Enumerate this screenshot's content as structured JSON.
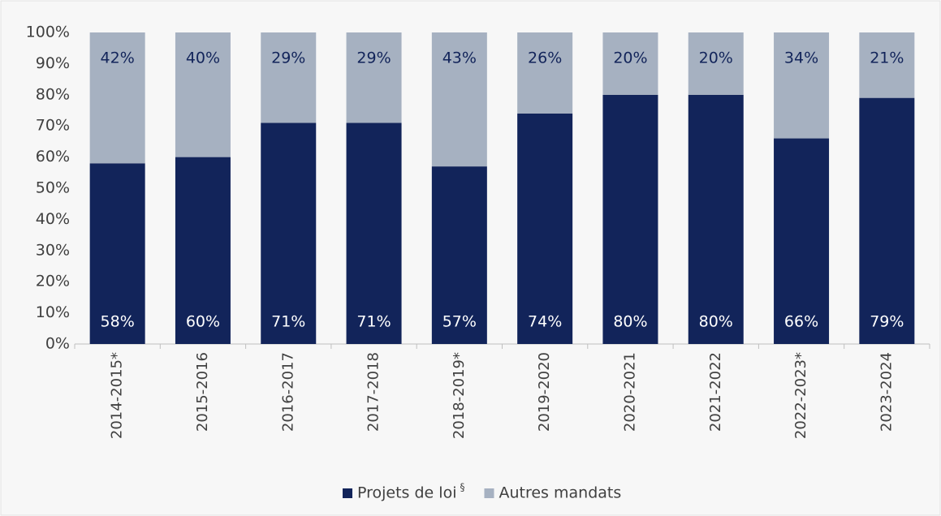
{
  "chart_data": {
    "type": "stacked_bar",
    "categories": [
      "2014-2015*",
      "2015-2016",
      "2016-2017",
      "2017-2018",
      "2018-2019*",
      "2019-2020",
      "2020-2021",
      "2021-2022",
      "2022-2023*",
      "2023-2024"
    ],
    "series": [
      {
        "name": "Projets de loi",
        "name_superscript": "§",
        "color": "#12245a",
        "values": [
          58,
          60,
          71,
          71,
          57,
          74,
          80,
          80,
          66,
          79
        ],
        "value_labels": [
          "58%",
          "60%",
          "71%",
          "71%",
          "57%",
          "74%",
          "80%",
          "80%",
          "66%",
          "79%"
        ]
      },
      {
        "name": "Autres mandats",
        "color": "#a6b1c1",
        "values": [
          42,
          40,
          29,
          29,
          43,
          26,
          20,
          20,
          34,
          21
        ],
        "value_labels": [
          "42%",
          "40%",
          "29%",
          "29%",
          "43%",
          "26%",
          "20%",
          "20%",
          "34%",
          "21%"
        ]
      }
    ],
    "ylim": [
      0,
      100
    ],
    "yticks": [
      {
        "value": 0,
        "label": "0%"
      },
      {
        "value": 10,
        "label": "10%"
      },
      {
        "value": 20,
        "label": "20%"
      },
      {
        "value": 30,
        "label": "30%"
      },
      {
        "value": 40,
        "label": "40%"
      },
      {
        "value": 50,
        "label": "50%"
      },
      {
        "value": 60,
        "label": "60%"
      },
      {
        "value": 70,
        "label": "70%"
      },
      {
        "value": 80,
        "label": "80%"
      },
      {
        "value": 90,
        "label": "90%"
      },
      {
        "value": 100,
        "label": "100%"
      }
    ],
    "legend": "bottom"
  }
}
